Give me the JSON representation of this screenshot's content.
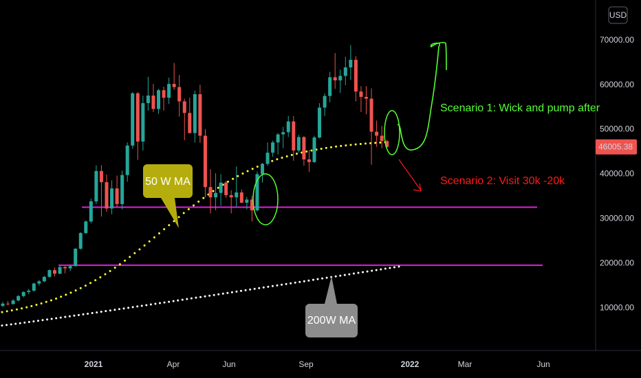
{
  "currency": "USD",
  "last_price": "46005.38",
  "colors": {
    "background": "#000000",
    "up": "#26a69a",
    "down": "#ef5350",
    "support": "#e01fe0",
    "ma50": "#ffff33",
    "ma200": "#ffffff",
    "scenario1": "#55ff33",
    "scenario2": "#ff1a1a",
    "price_tag": "#ef5350"
  },
  "annotations": {
    "ma50_label": "50 W MA",
    "ma200_label": "200W MA",
    "scenario1": "Scenario 1: Wick and pump after",
    "scenario2": "Scenario 2: Visit 30k -20k"
  },
  "chart_data": {
    "type": "candlestick",
    "interval": "weekly",
    "ylim": [
      0,
      75000
    ],
    "yticks": [
      {
        "value": 70000,
        "label": "70000.00"
      },
      {
        "value": 60000,
        "label": "60000.00"
      },
      {
        "value": 50000,
        "label": "50000.00"
      },
      {
        "value": 40000,
        "label": "40000.00"
      },
      {
        "value": 30000,
        "label": "30000.00"
      },
      {
        "value": 20000,
        "label": "20000.00"
      },
      {
        "value": 10000,
        "label": "10000.00"
      }
    ],
    "xticks": [
      {
        "label": "2021",
        "bold": true
      },
      {
        "label": "Apr",
        "bold": false
      },
      {
        "label": "Jun",
        "bold": false
      },
      {
        "label": "Sep",
        "bold": false
      },
      {
        "label": "2022",
        "bold": true
      },
      {
        "label": "Mar",
        "bold": false
      },
      {
        "label": "Jun",
        "bold": false
      }
    ],
    "candles": [
      [
        10400,
        11300,
        10100,
        10900
      ],
      [
        10900,
        11500,
        10500,
        10800
      ],
      [
        10800,
        11900,
        10700,
        11600
      ],
      [
        11600,
        12800,
        11400,
        12600
      ],
      [
        12600,
        13700,
        12300,
        13500
      ],
      [
        13500,
        14200,
        13000,
        13800
      ],
      [
        13800,
        15600,
        13600,
        15400
      ],
      [
        15400,
        16200,
        14900,
        15900
      ],
      [
        15900,
        17100,
        15700,
        16900
      ],
      [
        16900,
        18600,
        16700,
        18400
      ],
      [
        18400,
        19000,
        17000,
        17600
      ],
      [
        17600,
        19400,
        17500,
        19100
      ],
      [
        19100,
        19300,
        17700,
        18800
      ],
      [
        18800,
        19500,
        18200,
        19300
      ],
      [
        19300,
        23300,
        19200,
        23200
      ],
      [
        23200,
        26900,
        23000,
        26700
      ],
      [
        26700,
        29500,
        26500,
        29300
      ],
      [
        29300,
        34400,
        28900,
        33800
      ],
      [
        33800,
        41900,
        33200,
        40600
      ],
      [
        40600,
        41900,
        30400,
        38100
      ],
      [
        38100,
        39800,
        31500,
        32200
      ],
      [
        32200,
        38500,
        30900,
        36700
      ],
      [
        36700,
        39600,
        32500,
        33200
      ],
      [
        33200,
        40700,
        32000,
        39700
      ],
      [
        39700,
        47000,
        38200,
        46300
      ],
      [
        46300,
        58300,
        45600,
        58000
      ],
      [
        58000,
        58300,
        43100,
        47200
      ],
      [
        47200,
        57500,
        45200,
        55800
      ],
      [
        55800,
        61700,
        54100,
        57500
      ],
      [
        57500,
        60100,
        53800,
        54500
      ],
      [
        54500,
        59000,
        53400,
        58700
      ],
      [
        58700,
        59500,
        54100,
        57000
      ],
      [
        57000,
        61500,
        55600,
        60100
      ],
      [
        60100,
        64800,
        58800,
        59400
      ],
      [
        59400,
        62100,
        52800,
        56200
      ],
      [
        56200,
        56800,
        47500,
        53600
      ],
      [
        53600,
        57000,
        49000,
        49100
      ],
      [
        49100,
        58600,
        47000,
        57800
      ],
      [
        57800,
        59900,
        46900,
        48500
      ],
      [
        48500,
        50000,
        34700,
        37000
      ],
      [
        37000,
        41000,
        31100,
        34700
      ],
      [
        34700,
        40100,
        31800,
        35700
      ],
      [
        35700,
        39900,
        32800,
        38000
      ],
      [
        38000,
        38400,
        34600,
        35200
      ],
      [
        35200,
        36300,
        31100,
        34700
      ],
      [
        34700,
        41600,
        32600,
        35800
      ],
      [
        35800,
        36500,
        33400,
        33500
      ],
      [
        33500,
        34800,
        32000,
        34200
      ],
      [
        34200,
        35000,
        29300,
        31800
      ],
      [
        31800,
        40500,
        31500,
        39900
      ],
      [
        39900,
        42400,
        38000,
        42200
      ],
      [
        42200,
        47000,
        41800,
        44700
      ],
      [
        44700,
        47400,
        43800,
        47000
      ],
      [
        47000,
        49100,
        44300,
        48800
      ],
      [
        48800,
        50500,
        45700,
        49300
      ],
      [
        49300,
        52900,
        48200,
        51700
      ],
      [
        51700,
        52900,
        42900,
        45200
      ],
      [
        45200,
        48700,
        44700,
        48200
      ],
      [
        48200,
        48400,
        41800,
        43200
      ],
      [
        43200,
        45300,
        40400,
        42600
      ],
      [
        42600,
        48500,
        42400,
        48100
      ],
      [
        48100,
        55800,
        47900,
        54800
      ],
      [
        54800,
        58000,
        52900,
        57400
      ],
      [
        57400,
        62800,
        56000,
        61600
      ],
      [
        61600,
        67000,
        59000,
        60900
      ],
      [
        60900,
        63300,
        58100,
        61900
      ],
      [
        61900,
        66200,
        59800,
        63800
      ],
      [
        63800,
        68800,
        61000,
        65500
      ],
      [
        65500,
        66300,
        56200,
        58400
      ],
      [
        58400,
        59600,
        53800,
        57200
      ],
      [
        57200,
        59600,
        53300,
        56800
      ],
      [
        56800,
        59100,
        42000,
        49400
      ],
      [
        49400,
        51900,
        46000,
        48500
      ],
      [
        48500,
        50700,
        45700,
        47300
      ],
      [
        47300,
        47600,
        45800,
        46005
      ]
    ],
    "support_levels": [
      32500,
      19500
    ],
    "ma50_start": 9000,
    "ma50_end": 46500,
    "ma200_start": 6000,
    "ma200_end": 19200
  }
}
